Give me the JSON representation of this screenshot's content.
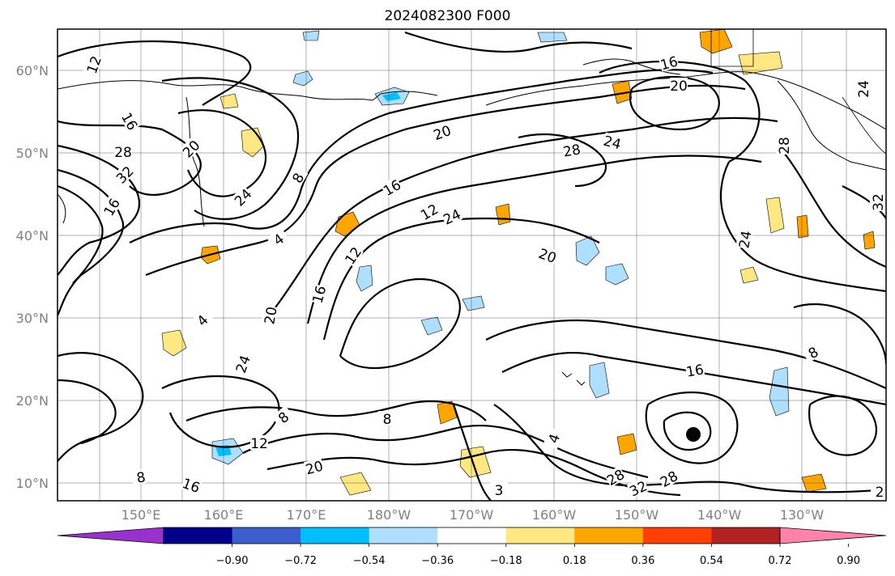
{
  "title": "2024082300 F000",
  "latitude_labels": [
    "60°N",
    "50°N",
    "40°N",
    "30°N",
    "20°N",
    "10°N"
  ],
  "longitude_labels": [
    "150°E",
    "160°E",
    "170°E",
    "180°W",
    "170°W",
    "160°W",
    "150°W",
    "140°W",
    "130°W"
  ],
  "colorbar": {
    "colors": [
      "#9932cc",
      "#00008b",
      "#3a5fcd",
      "#00bfff",
      "#aedfff",
      "#ffffff",
      "#ffe882",
      "#ffa500",
      "#ff4000",
      "#b22222",
      "#ff82ab"
    ],
    "tick_labels": [
      "−0.90",
      "−0.72",
      "−0.54",
      "−0.36",
      "−0.18",
      "0.18",
      "0.36",
      "0.54",
      "0.72",
      "0.90"
    ]
  },
  "contour_labels": [
    "12",
    "16",
    "28",
    "32",
    "16",
    "20",
    "24",
    "8",
    "4",
    "12",
    "16",
    "20",
    "24",
    "4",
    "8",
    "12",
    "8",
    "16",
    "20",
    "24",
    "28",
    "24",
    "20",
    "16",
    "24",
    "28",
    "32",
    "24",
    "20",
    "16",
    "8",
    "4",
    "12",
    "8",
    "16",
    "20",
    "28",
    "32",
    "28",
    "3",
    "2"
  ]
}
